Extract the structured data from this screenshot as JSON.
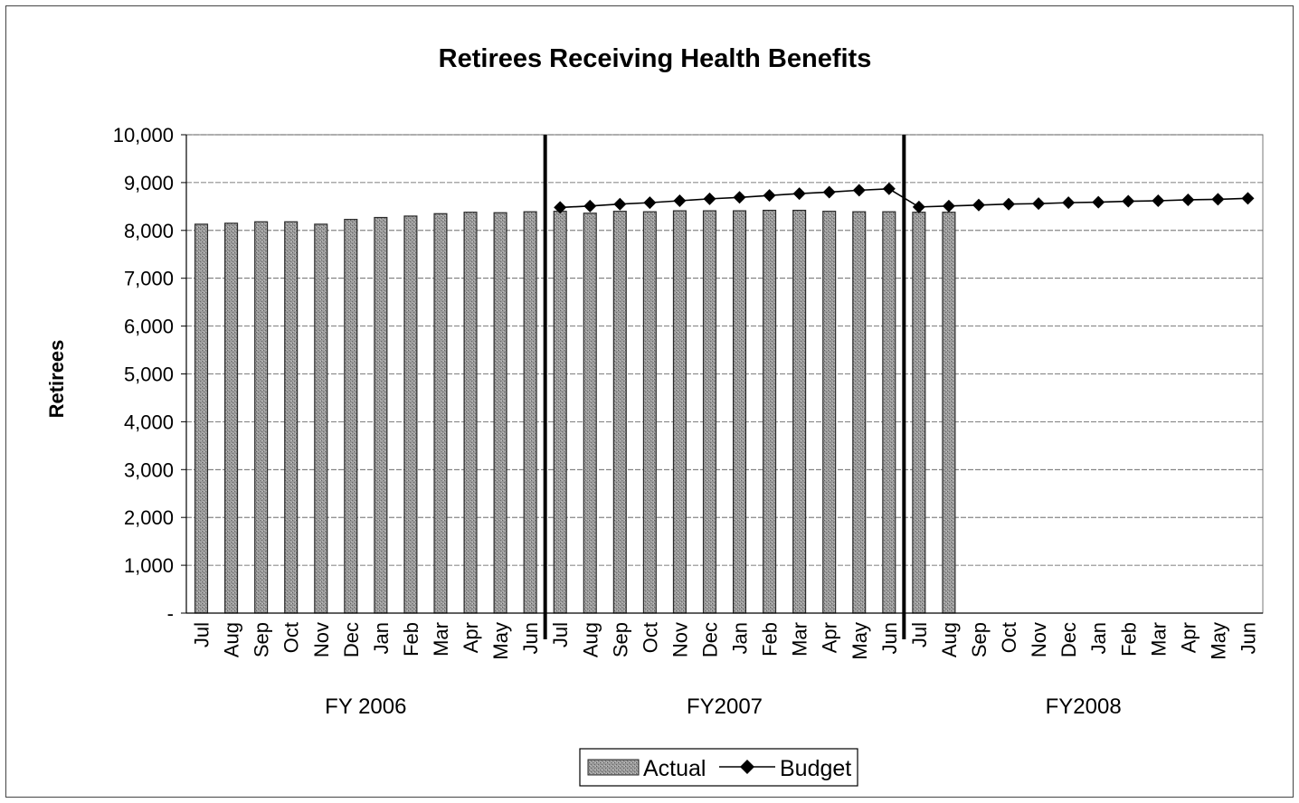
{
  "chart_data": {
    "type": "bar",
    "title": "Retirees Receiving Health Benefits",
    "ylabel": "Retirees",
    "xlabel": "",
    "ylim": [
      0,
      10000
    ],
    "yticks": [
      "-",
      "1,000",
      "2,000",
      "3,000",
      "4,000",
      "5,000",
      "6,000",
      "7,000",
      "8,000",
      "9,000",
      "10,000"
    ],
    "ytick_values": [
      0,
      1000,
      2000,
      3000,
      4000,
      5000,
      6000,
      7000,
      8000,
      9000,
      10000
    ],
    "grid": true,
    "legend_position": "bottom-center",
    "categories": [
      "Jul",
      "Aug",
      "Sep",
      "Oct",
      "Nov",
      "Dec",
      "Jan",
      "Feb",
      "Mar",
      "Apr",
      "May",
      "Jun",
      "Jul",
      "Aug",
      "Sep",
      "Oct",
      "Nov",
      "Dec",
      "Jan",
      "Feb",
      "Mar",
      "Apr",
      "May",
      "Jun",
      "Jul",
      "Aug",
      "Sep",
      "Oct",
      "Nov",
      "Dec",
      "Jan",
      "Feb",
      "Mar",
      "Apr",
      "May",
      "Jun"
    ],
    "groups": [
      {
        "label": "FY 2006",
        "start": 0,
        "end": 11
      },
      {
        "label": "FY2007",
        "start": 12,
        "end": 23
      },
      {
        "label": "FY2008",
        "start": 24,
        "end": 35
      }
    ],
    "series": [
      {
        "name": "Actual",
        "type": "bar",
        "values": [
          8130,
          8150,
          8180,
          8180,
          8130,
          8230,
          8270,
          8300,
          8350,
          8380,
          8370,
          8390,
          8400,
          8360,
          8400,
          8390,
          8410,
          8410,
          8410,
          8420,
          8420,
          8400,
          8390,
          8390,
          8380,
          8380,
          null,
          null,
          null,
          null,
          null,
          null,
          null,
          null,
          null,
          null
        ]
      },
      {
        "name": "Budget",
        "type": "line",
        "values": [
          null,
          null,
          null,
          null,
          null,
          null,
          null,
          null,
          null,
          null,
          null,
          null,
          8480,
          8510,
          8550,
          8580,
          8620,
          8660,
          8690,
          8730,
          8770,
          8800,
          8840,
          8870,
          8490,
          8510,
          8530,
          8550,
          8560,
          8580,
          8590,
          8610,
          8620,
          8640,
          8650,
          8670
        ]
      }
    ],
    "colors": {
      "bar": "#8c8c8c",
      "bar_edge": "#2a2a2a",
      "line": "#000000",
      "divider": "#000000"
    }
  }
}
